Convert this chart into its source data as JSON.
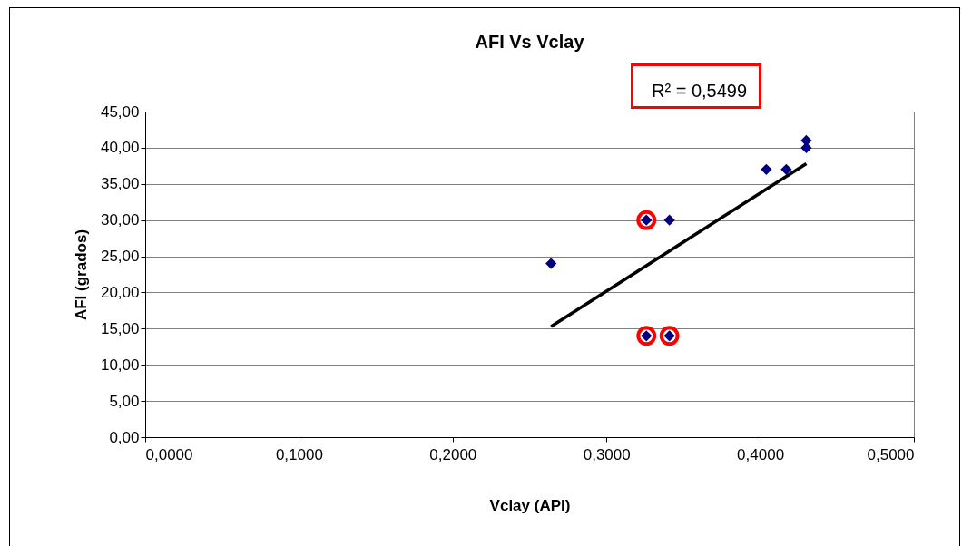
{
  "chart_data": {
    "type": "scatter",
    "title": "AFI Vs Vclay",
    "xlabel": "Vclay (API)",
    "ylabel": "AFI (grados)",
    "annotations": [
      "R² = 0,5499"
    ],
    "xlim": [
      0,
      0.5
    ],
    "xticks": [
      {
        "value": 0,
        "label": "0,0000"
      },
      {
        "value": 0.1,
        "label": "0,1000"
      },
      {
        "value": 0.2,
        "label": "0,2000"
      },
      {
        "value": 0.3,
        "label": "0,3000"
      },
      {
        "value": 0.4,
        "label": "0,4000"
      },
      {
        "value": 0.5,
        "label": "0,5000"
      }
    ],
    "ylim": [
      0,
      45
    ],
    "yticks": [
      {
        "value": 0,
        "label": "0,00"
      },
      {
        "value": 5,
        "label": "5,00"
      },
      {
        "value": 10,
        "label": "10,00"
      },
      {
        "value": 15,
        "label": "15,00"
      },
      {
        "value": 20,
        "label": "20,00"
      },
      {
        "value": 25,
        "label": "25,00"
      },
      {
        "value": 30,
        "label": "30,00"
      },
      {
        "value": 35,
        "label": "35,00"
      },
      {
        "value": 40,
        "label": "40,00"
      },
      {
        "value": 45,
        "label": "45,00"
      }
    ],
    "grid": "y",
    "marker": "diamond",
    "series": [
      {
        "color": "#000080",
        "x": [
          0.264,
          0.326,
          0.341,
          0.326,
          0.341,
          0.404,
          0.417,
          0.43,
          0.43
        ],
        "values": [
          24,
          30,
          30,
          14,
          14,
          37,
          37,
          41,
          40
        ]
      },
      {
        "color": "#ff0000",
        "marker": "circle",
        "x": [
          0.326,
          0.326,
          0.341
        ],
        "values": [
          30,
          14,
          14
        ]
      },
      {
        "type": "line",
        "color": "#000000",
        "line_style": "solid",
        "marker": "none",
        "x": [
          0.264,
          0.43
        ],
        "values": [
          15.3,
          37.8
        ]
      }
    ]
  }
}
